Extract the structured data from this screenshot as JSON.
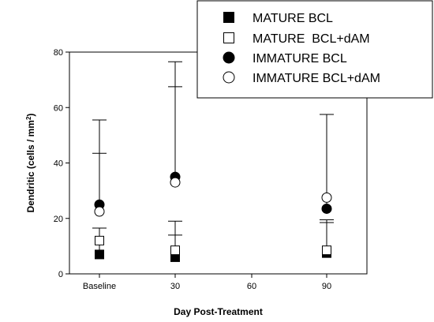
{
  "chart_data": {
    "type": "scatter",
    "xlabel": "Day Post-Treatment",
    "ylabel_main": "Dendritic (cells / mm",
    "ylabel_sup": "2",
    "ylabel_end": ")",
    "ylim": [
      0,
      80
    ],
    "y_ticks": [
      "0",
      "20",
      "40",
      "60",
      "80"
    ],
    "categories": [
      "Baseline",
      "30",
      "60",
      "90"
    ],
    "legend_position": "top-right",
    "series": [
      {
        "name": "MATURE BCL",
        "marker": "square",
        "filled": true,
        "points": [
          {
            "category": "Baseline",
            "y": 7,
            "err_high": 16.5
          },
          {
            "category": "30",
            "y": 6,
            "err_high": 14
          },
          {
            "category": "90",
            "y": 7.5,
            "err_high": 18.5
          }
        ]
      },
      {
        "name": "MATURE  BCL+dAM",
        "marker": "square",
        "filled": false,
        "points": [
          {
            "category": "Baseline",
            "y": 12,
            "err_high": 16.5
          },
          {
            "category": "30",
            "y": 8.5,
            "err_high": 19
          },
          {
            "category": "90",
            "y": 8.5,
            "err_high": 19.5
          }
        ]
      },
      {
        "name": "IMMATURE BCL",
        "marker": "circle",
        "filled": true,
        "points": [
          {
            "category": "Baseline",
            "y": 25,
            "err_high": 55.5
          },
          {
            "category": "30",
            "y": 35,
            "err_high": 76.5
          },
          {
            "category": "90",
            "y": 23.5,
            "err_high": 57.5
          }
        ]
      },
      {
        "name": "IMMATURE BCL+dAM",
        "marker": "circle",
        "filled": false,
        "points": [
          {
            "category": "Baseline",
            "y": 22.5,
            "err_high": 43.5
          },
          {
            "category": "30",
            "y": 33,
            "err_high": 67.5
          },
          {
            "category": "90",
            "y": 27.5,
            "err_high": 57.5
          }
        ]
      }
    ],
    "colors": {
      "marker_fill": "#000000",
      "marker_open_fill": "#ffffff",
      "stroke": "#000000"
    }
  }
}
